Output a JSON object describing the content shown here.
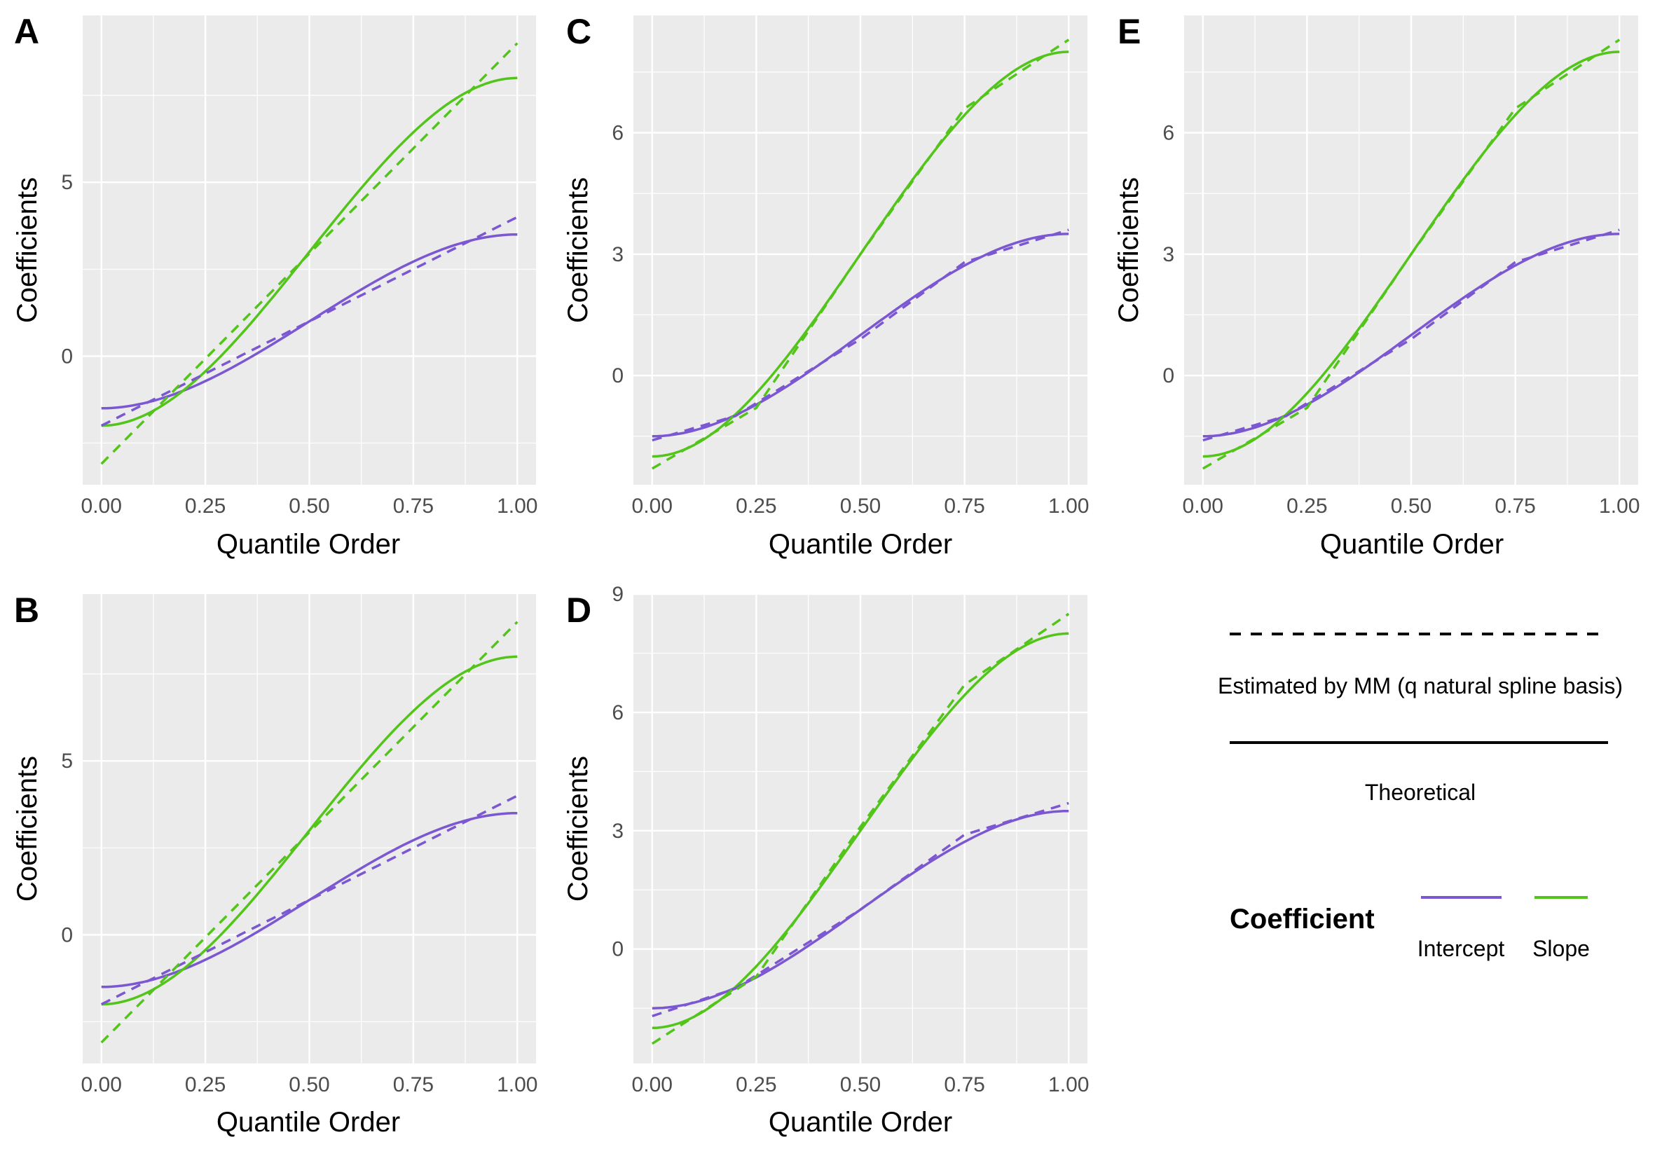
{
  "chart_data": [
    {
      "panel": "A",
      "type": "line",
      "xlabel": "Quantile Order",
      "ylabel": "Coefficients",
      "xlim": [
        0,
        1
      ],
      "ylim": [
        -3.7,
        9.8
      ],
      "xticks": [
        0,
        0.25,
        0.5,
        0.75,
        1
      ],
      "xtick_labels": [
        "0.00",
        "0.25",
        "0.50",
        "0.75",
        "1.00"
      ],
      "yticks": [
        0,
        5
      ],
      "ytick_labels": [
        "0",
        "5"
      ],
      "estimated": {
        "intercept": [
          -2.0,
          4.0
        ],
        "slope": [
          -3.1,
          9.0
        ]
      }
    },
    {
      "panel": "B",
      "type": "line",
      "xlabel": "Quantile Order",
      "ylabel": "Coefficients",
      "xlim": [
        0,
        1
      ],
      "ylim": [
        -3.7,
        9.8
      ],
      "xticks": [
        0,
        0.25,
        0.5,
        0.75,
        1
      ],
      "xtick_labels": [
        "0.00",
        "0.25",
        "0.50",
        "0.75",
        "1.00"
      ],
      "yticks": [
        0,
        5
      ],
      "ytick_labels": [
        "0",
        "5"
      ],
      "estimated": {
        "intercept": [
          -2.0,
          4.0
        ],
        "slope": [
          -3.1,
          9.0
        ]
      }
    },
    {
      "panel": "C",
      "type": "line",
      "xlabel": "Quantile Order",
      "ylabel": "Coefficients",
      "xlim": [
        0,
        1
      ],
      "ylim": [
        -2.7,
        8.9
      ],
      "xticks": [
        0,
        0.25,
        0.5,
        0.75,
        1
      ],
      "xtick_labels": [
        "0.00",
        "0.25",
        "0.50",
        "0.75",
        "1.00"
      ],
      "yticks": [
        0,
        3,
        6
      ],
      "ytick_labels": [
        "0",
        "3",
        "6"
      ],
      "estimated": {
        "intercept": {
          "q": [
            0,
            0.2,
            0.5,
            0.75,
            1.0
          ],
          "v": [
            -1.6,
            -1.0,
            0.9,
            2.8,
            3.6
          ]
        },
        "slope": {
          "q": [
            0,
            0.25,
            0.5,
            0.75,
            1.0
          ],
          "v": [
            -2.3,
            -0.8,
            3.0,
            6.6,
            8.3
          ]
        }
      }
    },
    {
      "panel": "D",
      "type": "line",
      "xlabel": "Quantile Order",
      "ylabel": "Coefficients",
      "xlim": [
        0,
        1
      ],
      "ylim": [
        -2.9,
        9.0
      ],
      "xticks": [
        0,
        0.25,
        0.5,
        0.75,
        1
      ],
      "xtick_labels": [
        "0.00",
        "0.25",
        "0.50",
        "0.75",
        "1.00"
      ],
      "yticks": [
        0,
        3,
        6,
        9
      ],
      "ytick_labels": [
        "0",
        "3",
        "6",
        "9"
      ],
      "estimated": {
        "intercept": {
          "q": [
            0,
            0.2,
            0.5,
            0.75,
            1.0
          ],
          "v": [
            -1.7,
            -1.0,
            1.0,
            2.9,
            3.7
          ]
        },
        "slope": {
          "q": [
            0,
            0.25,
            0.5,
            0.75,
            1.0
          ],
          "v": [
            -2.4,
            -0.7,
            3.1,
            6.7,
            8.5
          ]
        }
      }
    },
    {
      "panel": "E",
      "type": "line",
      "xlabel": "Quantile Order",
      "ylabel": "Coefficients",
      "xlim": [
        0,
        1
      ],
      "ylim": [
        -2.7,
        8.9
      ],
      "xticks": [
        0,
        0.25,
        0.5,
        0.75,
        1
      ],
      "xtick_labels": [
        "0.00",
        "0.25",
        "0.50",
        "0.75",
        "1.00"
      ],
      "yticks": [
        0,
        3,
        6
      ],
      "ytick_labels": [
        "0",
        "3",
        "6"
      ],
      "estimated": {
        "intercept": {
          "q": [
            0,
            0.2,
            0.5,
            0.75,
            1.0
          ],
          "v": [
            -1.6,
            -1.0,
            0.9,
            2.8,
            3.6
          ]
        },
        "slope": {
          "q": [
            0,
            0.25,
            0.5,
            0.75,
            1.0
          ],
          "v": [
            -2.3,
            -0.8,
            3.0,
            6.6,
            8.3
          ]
        }
      }
    }
  ],
  "theoretical": {
    "intercept": {
      "start": -1.5,
      "end": 3.5
    },
    "slope": {
      "start": -2.0,
      "end": 8.0
    }
  },
  "legend": {
    "estimated_label": "Estimated by MM (q natural spline basis)",
    "theoretical_label": "Theoretical",
    "coefficient_title": "Coefficient",
    "intercept_label": "Intercept",
    "slope_label": "Slope"
  },
  "colors": {
    "intercept": "#7b57d1",
    "slope": "#52c41a",
    "panel_bg": "#ebebeb",
    "grid": "#ffffff",
    "tick_text": "#4d4d4d"
  }
}
